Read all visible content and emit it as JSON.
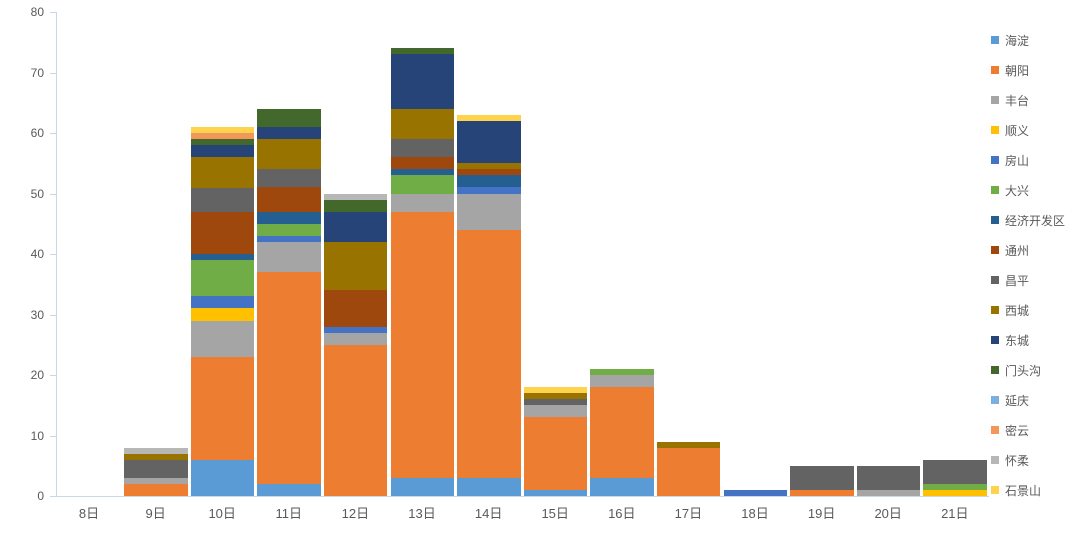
{
  "colors": {
    "background": "#FFFFFF",
    "axis_line": "#C9D6E8",
    "label": "#595959"
  },
  "chart_data": {
    "type": "bar",
    "stacked": true,
    "title": "",
    "xlabel": "",
    "ylabel": "",
    "ylim": [
      0,
      80
    ],
    "y_ticks": [
      0,
      10,
      20,
      30,
      40,
      50,
      60,
      70,
      80
    ],
    "grid": false,
    "legend_position": "right",
    "categories": [
      "8日",
      "9日",
      "10日",
      "11日",
      "12日",
      "13日",
      "14日",
      "15日",
      "16日",
      "17日",
      "18日",
      "19日",
      "20日",
      "21日"
    ],
    "series": [
      {
        "name": "海淀",
        "color": "#5B9BD5",
        "values": [
          0,
          0,
          6,
          2,
          0,
          3,
          3,
          1,
          3,
          0,
          0,
          0,
          0,
          0
        ]
      },
      {
        "name": "朝阳",
        "color": "#ED7D31",
        "values": [
          0,
          2,
          17,
          35,
          25,
          44,
          41,
          12,
          15,
          8,
          0,
          1,
          0,
          0
        ]
      },
      {
        "name": "丰台",
        "color": "#A5A5A5",
        "values": [
          0,
          1,
          6,
          5,
          2,
          3,
          6,
          2,
          2,
          0,
          0,
          0,
          1,
          0
        ]
      },
      {
        "name": "顺义",
        "color": "#FFC000",
        "values": [
          0,
          0,
          2,
          0,
          0,
          0,
          0,
          0,
          0,
          0,
          0,
          0,
          0,
          1
        ]
      },
      {
        "name": "房山",
        "color": "#4472C4",
        "values": [
          0,
          0,
          2,
          1,
          1,
          0,
          1,
          0,
          0,
          0,
          1,
          0,
          0,
          0
        ]
      },
      {
        "name": "大兴",
        "color": "#70AD47",
        "values": [
          0,
          0,
          6,
          2,
          0,
          3,
          0,
          0,
          1,
          0,
          0,
          0,
          0,
          1
        ]
      },
      {
        "name": "经济开发区",
        "color": "#255E91",
        "values": [
          0,
          0,
          1,
          2,
          0,
          1,
          2,
          0,
          0,
          0,
          0,
          0,
          0,
          0
        ]
      },
      {
        "name": "通州",
        "color": "#9E480E",
        "values": [
          0,
          0,
          7,
          4,
          6,
          2,
          1,
          0,
          0,
          0,
          0,
          0,
          0,
          0
        ]
      },
      {
        "name": "昌平",
        "color": "#636363",
        "values": [
          0,
          3,
          4,
          3,
          0,
          3,
          0,
          1,
          0,
          0,
          0,
          4,
          4,
          4
        ]
      },
      {
        "name": "西城",
        "color": "#997300",
        "values": [
          0,
          1,
          5,
          5,
          8,
          5,
          1,
          1,
          0,
          1,
          0,
          0,
          0,
          0
        ]
      },
      {
        "name": "东城",
        "color": "#264478",
        "values": [
          0,
          0,
          2,
          2,
          5,
          9,
          7,
          0,
          0,
          0,
          0,
          0,
          0,
          0
        ]
      },
      {
        "name": "门头沟",
        "color": "#43682B",
        "values": [
          0,
          0,
          1,
          3,
          2,
          1,
          0,
          0,
          0,
          0,
          0,
          0,
          0,
          0
        ]
      },
      {
        "name": "延庆",
        "color": "#7CAFDD",
        "values": [
          0,
          0,
          0,
          0,
          0,
          0,
          0,
          0,
          0,
          0,
          0,
          0,
          0,
          0
        ]
      },
      {
        "name": "密云",
        "color": "#F1975A",
        "values": [
          0,
          0,
          1,
          0,
          0,
          0,
          0,
          0,
          0,
          0,
          0,
          0,
          0,
          0
        ]
      },
      {
        "name": "怀柔",
        "color": "#B7B7B7",
        "values": [
          0,
          1,
          0,
          0,
          1,
          0,
          0,
          0,
          0,
          0,
          0,
          0,
          0,
          0
        ]
      },
      {
        "name": "石景山",
        "color": "#FFD34D",
        "values": [
          0,
          0,
          1,
          0,
          0,
          0,
          1,
          1,
          0,
          0,
          0,
          0,
          0,
          0
        ]
      }
    ]
  }
}
